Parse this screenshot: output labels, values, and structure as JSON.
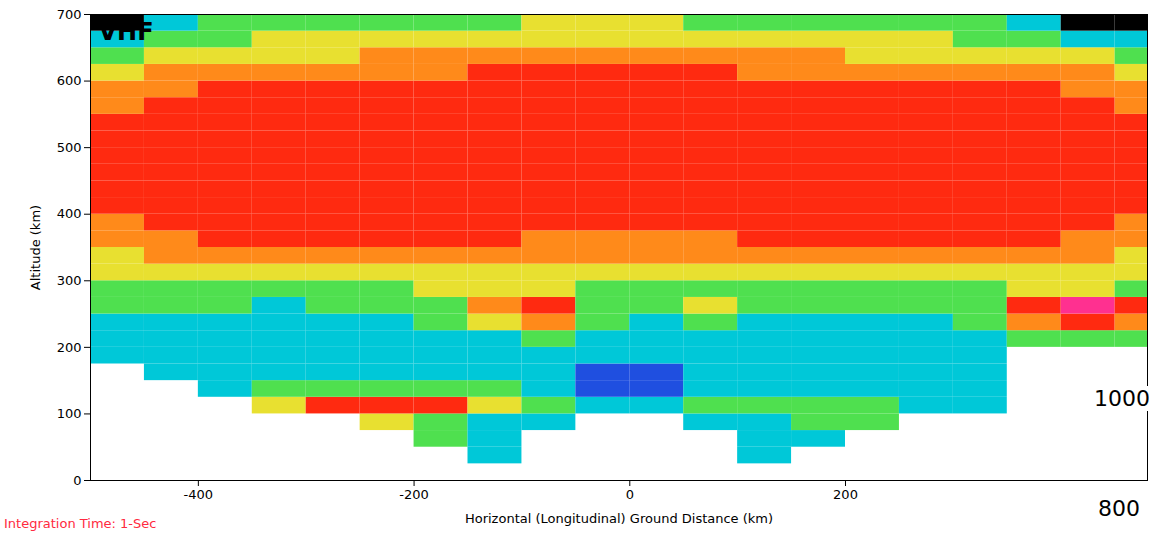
{
  "chart_data": {
    "type": "heatmap",
    "title": "VHF",
    "x_label": "Horizontal (Longitudinal) Ground Distance (km)",
    "y_label": "Altitude (km)",
    "annotations": [
      "Integration Time: 1-Sec",
      "1000",
      "800"
    ],
    "xlim": [
      -500,
      480
    ],
    "ylim": [
      0,
      700
    ],
    "xticks": [
      -400,
      -200,
      0,
      200
    ],
    "yticks": [
      0,
      100,
      200,
      300,
      400,
      500,
      600,
      700
    ],
    "grid": false,
    "colors": [
      "#000000",
      "#1f4fe0",
      "#00c8d8",
      "#4fe04f",
      "#e8e030",
      "#ff8a1a",
      "#ff2a10",
      "#ff3090"
    ],
    "x_bins": [
      -500,
      -450,
      -400,
      -350,
      -300,
      -250,
      -200,
      -150,
      -100,
      -50,
      0,
      50,
      100,
      150,
      200,
      250,
      300,
      350,
      400,
      450,
      500
    ],
    "y_bins": [
      0,
      25,
      50,
      75,
      100,
      125,
      150,
      175,
      200,
      225,
      250,
      275,
      300,
      325,
      350,
      375,
      400,
      425,
      450,
      475,
      500,
      525,
      550,
      575,
      600,
      625,
      650,
      675,
      700
    ],
    "cells": [
      [
        null,
        null,
        null,
        null,
        null,
        null,
        null,
        null,
        null,
        null,
        null,
        null,
        null,
        null,
        null,
        null,
        null,
        null,
        null,
        null
      ],
      [
        null,
        null,
        null,
        null,
        null,
        null,
        null,
        2,
        null,
        null,
        null,
        null,
        2,
        null,
        null,
        null,
        null,
        null,
        null,
        null
      ],
      [
        null,
        null,
        null,
        null,
        null,
        null,
        3,
        2,
        null,
        null,
        null,
        null,
        2,
        2,
        null,
        null,
        null,
        null,
        null,
        null
      ],
      [
        null,
        null,
        null,
        null,
        null,
        4,
        3,
        2,
        2,
        null,
        null,
        2,
        2,
        3,
        3,
        null,
        null,
        null,
        null,
        null
      ],
      [
        null,
        null,
        null,
        4,
        6,
        6,
        6,
        4,
        3,
        2,
        2,
        3,
        3,
        3,
        3,
        2,
        2,
        null,
        null,
        null
      ],
      [
        null,
        null,
        2,
        3,
        3,
        3,
        3,
        3,
        2,
        1,
        1,
        2,
        2,
        2,
        2,
        2,
        2,
        null,
        null,
        null
      ],
      [
        null,
        2,
        2,
        2,
        2,
        2,
        2,
        2,
        2,
        1,
        1,
        2,
        2,
        2,
        2,
        2,
        2,
        null,
        null,
        null
      ],
      [
        2,
        2,
        2,
        2,
        2,
        2,
        2,
        2,
        2,
        2,
        2,
        2,
        2,
        2,
        2,
        2,
        2,
        null,
        null,
        null
      ],
      [
        2,
        2,
        2,
        2,
        2,
        2,
        2,
        2,
        3,
        2,
        2,
        2,
        2,
        2,
        2,
        2,
        2,
        3,
        3,
        3
      ],
      [
        2,
        2,
        2,
        2,
        2,
        2,
        3,
        4,
        5,
        3,
        2,
        3,
        2,
        2,
        2,
        2,
        3,
        5,
        6,
        5
      ],
      [
        3,
        3,
        3,
        2,
        3,
        3,
        3,
        5,
        6,
        3,
        3,
        4,
        3,
        3,
        3,
        3,
        3,
        6,
        7,
        6
      ],
      [
        3,
        3,
        3,
        3,
        3,
        3,
        4,
        4,
        4,
        3,
        3,
        3,
        3,
        3,
        3,
        3,
        3,
        4,
        4,
        3
      ],
      [
        4,
        4,
        4,
        4,
        4,
        4,
        4,
        4,
        4,
        4,
        4,
        4,
        4,
        4,
        4,
        4,
        4,
        4,
        4,
        4
      ],
      [
        4,
        5,
        5,
        5,
        5,
        5,
        5,
        5,
        5,
        5,
        5,
        5,
        5,
        5,
        5,
        5,
        5,
        5,
        5,
        4
      ],
      [
        5,
        5,
        6,
        6,
        6,
        6,
        6,
        6,
        5,
        5,
        5,
        5,
        6,
        6,
        6,
        6,
        6,
        6,
        5,
        5
      ],
      [
        5,
        6,
        6,
        6,
        6,
        6,
        6,
        6,
        6,
        6,
        6,
        6,
        6,
        6,
        6,
        6,
        6,
        6,
        6,
        5
      ],
      [
        6,
        6,
        6,
        6,
        6,
        6,
        6,
        6,
        6,
        6,
        6,
        6,
        6,
        6,
        6,
        6,
        6,
        6,
        6,
        6
      ],
      [
        6,
        6,
        6,
        6,
        6,
        6,
        6,
        6,
        6,
        6,
        6,
        6,
        6,
        6,
        6,
        6,
        6,
        6,
        6,
        6
      ],
      [
        6,
        6,
        6,
        6,
        6,
        6,
        6,
        6,
        6,
        6,
        6,
        6,
        6,
        6,
        6,
        6,
        6,
        6,
        6,
        6
      ],
      [
        6,
        6,
        6,
        6,
        6,
        6,
        6,
        6,
        6,
        6,
        6,
        6,
        6,
        6,
        6,
        6,
        6,
        6,
        6,
        6
      ],
      [
        6,
        6,
        6,
        6,
        6,
        6,
        6,
        6,
        6,
        6,
        6,
        6,
        6,
        6,
        6,
        6,
        6,
        6,
        6,
        6
      ],
      [
        6,
        6,
        6,
        6,
        6,
        6,
        6,
        6,
        6,
        6,
        6,
        6,
        6,
        6,
        6,
        6,
        6,
        6,
        6,
        6
      ],
      [
        5,
        6,
        6,
        6,
        6,
        6,
        6,
        6,
        6,
        6,
        6,
        6,
        6,
        6,
        6,
        6,
        6,
        6,
        6,
        5
      ],
      [
        5,
        5,
        6,
        6,
        6,
        6,
        6,
        6,
        6,
        6,
        6,
        6,
        6,
        6,
        6,
        6,
        6,
        6,
        5,
        5
      ],
      [
        4,
        5,
        5,
        5,
        5,
        5,
        5,
        6,
        6,
        6,
        6,
        6,
        5,
        5,
        5,
        5,
        5,
        5,
        5,
        4
      ],
      [
        3,
        4,
        4,
        4,
        4,
        5,
        5,
        5,
        5,
        5,
        5,
        5,
        5,
        5,
        4,
        4,
        4,
        4,
        4,
        3
      ],
      [
        2,
        3,
        3,
        4,
        4,
        4,
        4,
        4,
        4,
        4,
        4,
        4,
        4,
        4,
        4,
        4,
        3,
        3,
        2,
        2
      ],
      [
        0,
        2,
        3,
        3,
        3,
        3,
        3,
        3,
        4,
        4,
        4,
        3,
        3,
        3,
        3,
        3,
        3,
        2,
        0,
        0
      ]
    ]
  }
}
